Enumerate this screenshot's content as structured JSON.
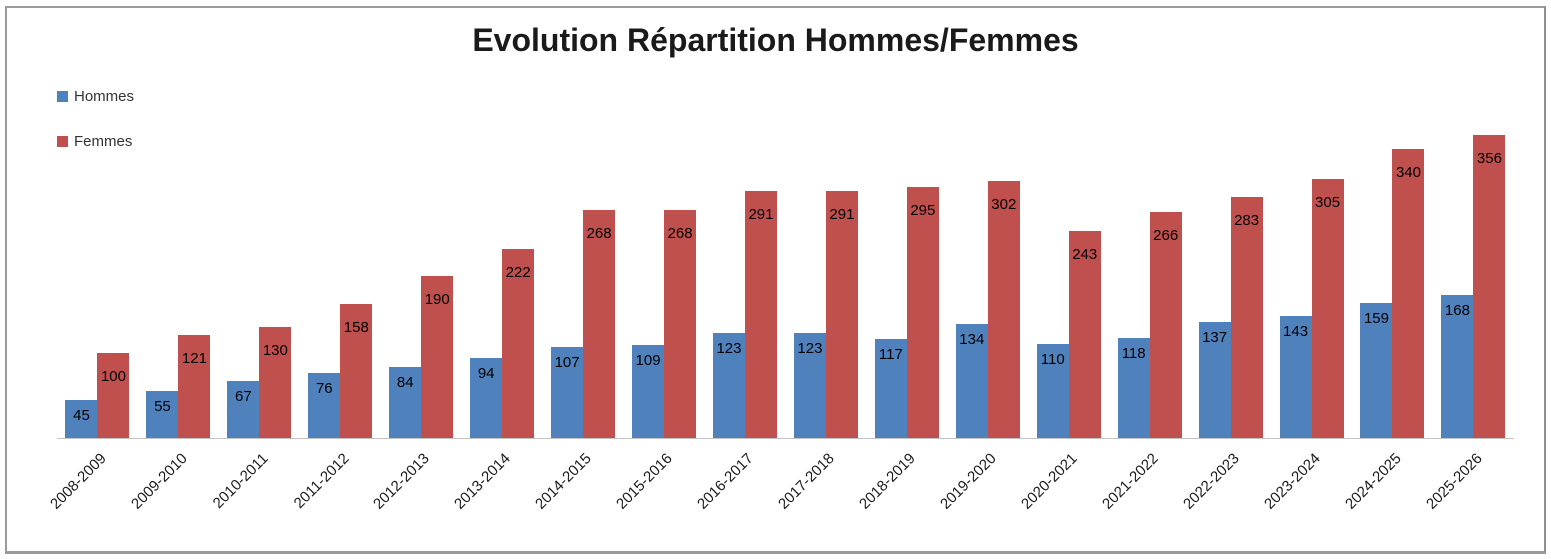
{
  "chart_data": {
    "type": "bar",
    "title": "Evolution Répartition Hommes/Femmes",
    "categories": [
      "2008-2009",
      "2009-2010",
      "2010-2011",
      "2011-2012",
      "2012-2013",
      "2013-2014",
      "2014-2015",
      "2015-2016",
      "2016-2017",
      "2017-2018",
      "2018-2019",
      "2019-2020",
      "2020-2021",
      "2021-2022",
      "2022-2023",
      "2023-2024",
      "2024-2025",
      "2025-2026"
    ],
    "series": [
      {
        "name": "Hommes",
        "color": "#4F81BD",
        "values": [
          45,
          55,
          67,
          76,
          84,
          94,
          107,
          109,
          123,
          123,
          117,
          134,
          110,
          118,
          137,
          143,
          159,
          168
        ]
      },
      {
        "name": "Femmes",
        "color": "#C0504D",
        "values": [
          100,
          121,
          130,
          158,
          190,
          222,
          268,
          268,
          291,
          291,
          295,
          302,
          243,
          266,
          283,
          305,
          340,
          356
        ]
      }
    ],
    "xlabel": "",
    "ylabel": "",
    "ylim": [
      0,
      435
    ],
    "grid": false,
    "y_axis_visible": false,
    "legend_position": "top-left",
    "data_labels": "inside-end",
    "axis_line_color": "#C3C3C3",
    "label_color": "#000000",
    "frame_border_color": "#9B9B9B"
  }
}
